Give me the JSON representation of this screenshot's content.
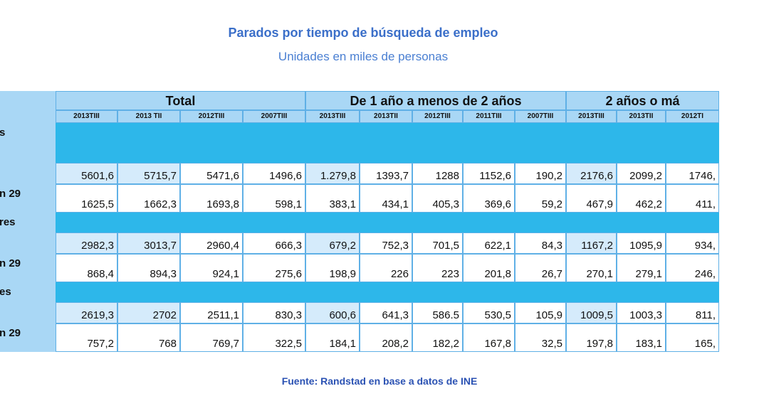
{
  "header": {
    "title": "Parados por tiempo de búsqueda de empleo",
    "subtitle": "Unidades en miles de personas"
  },
  "table": {
    "groups": [
      "Total",
      "De 1 año a menos de 2 años",
      "2 años o má"
    ],
    "periods": [
      "2013TIII",
      "2013 TII",
      "2012TIII",
      "2007TIII",
      "2013TIII",
      "2013TII",
      "2012TIII",
      "2011TIII",
      "2007TIII",
      "2013TIII",
      "2013TII",
      "2012TI"
    ],
    "rows": [
      {
        "label": "s",
        "section": true
      },
      {
        "cells": [
          "5601,6",
          "5715,7",
          "5471,6",
          "1496,6",
          "1.279,8",
          "1393,7",
          "1288",
          "1152,6",
          "190,2",
          "2176,6",
          "2099,2",
          "1746,"
        ]
      },
      {
        "label": "n 29",
        "cells": [
          "1625,5",
          "1662,3",
          "1693,8",
          "598,1",
          "383,1",
          "434,1",
          "405,3",
          "369,6",
          "59,2",
          "467,9",
          "462,2",
          "411,"
        ]
      },
      {
        "label": "res",
        "section": true
      },
      {
        "cells": [
          "2982,3",
          "3013,7",
          "2960,4",
          "666,3",
          "679,2",
          "752,3",
          "701,5",
          "622,1",
          "84,3",
          "1167,2",
          "1095,9",
          "934,"
        ]
      },
      {
        "label": "n 29",
        "cells": [
          "868,4",
          "894,3",
          "924,1",
          "275,6",
          "198,9",
          "226",
          "223",
          "201,8",
          "26,7",
          "270,1",
          "279,1",
          "246,"
        ]
      },
      {
        "label": "es",
        "section": true
      },
      {
        "cells": [
          "2619,3",
          "2702",
          "2511,1",
          "830,3",
          "600,6",
          "641,3",
          "586.5",
          "530,5",
          "105,9",
          "1009,5",
          "1003,3",
          "811,"
        ]
      },
      {
        "label": "n 29",
        "cells": [
          "757,2",
          "768",
          "769,7",
          "322,5",
          "184,1",
          "208,2",
          "182,2",
          "167,8",
          "32,5",
          "197,8",
          "183,1",
          "165,"
        ]
      }
    ]
  },
  "footer": {
    "source": "Fuente: Randstad en base a datos de INE"
  }
}
